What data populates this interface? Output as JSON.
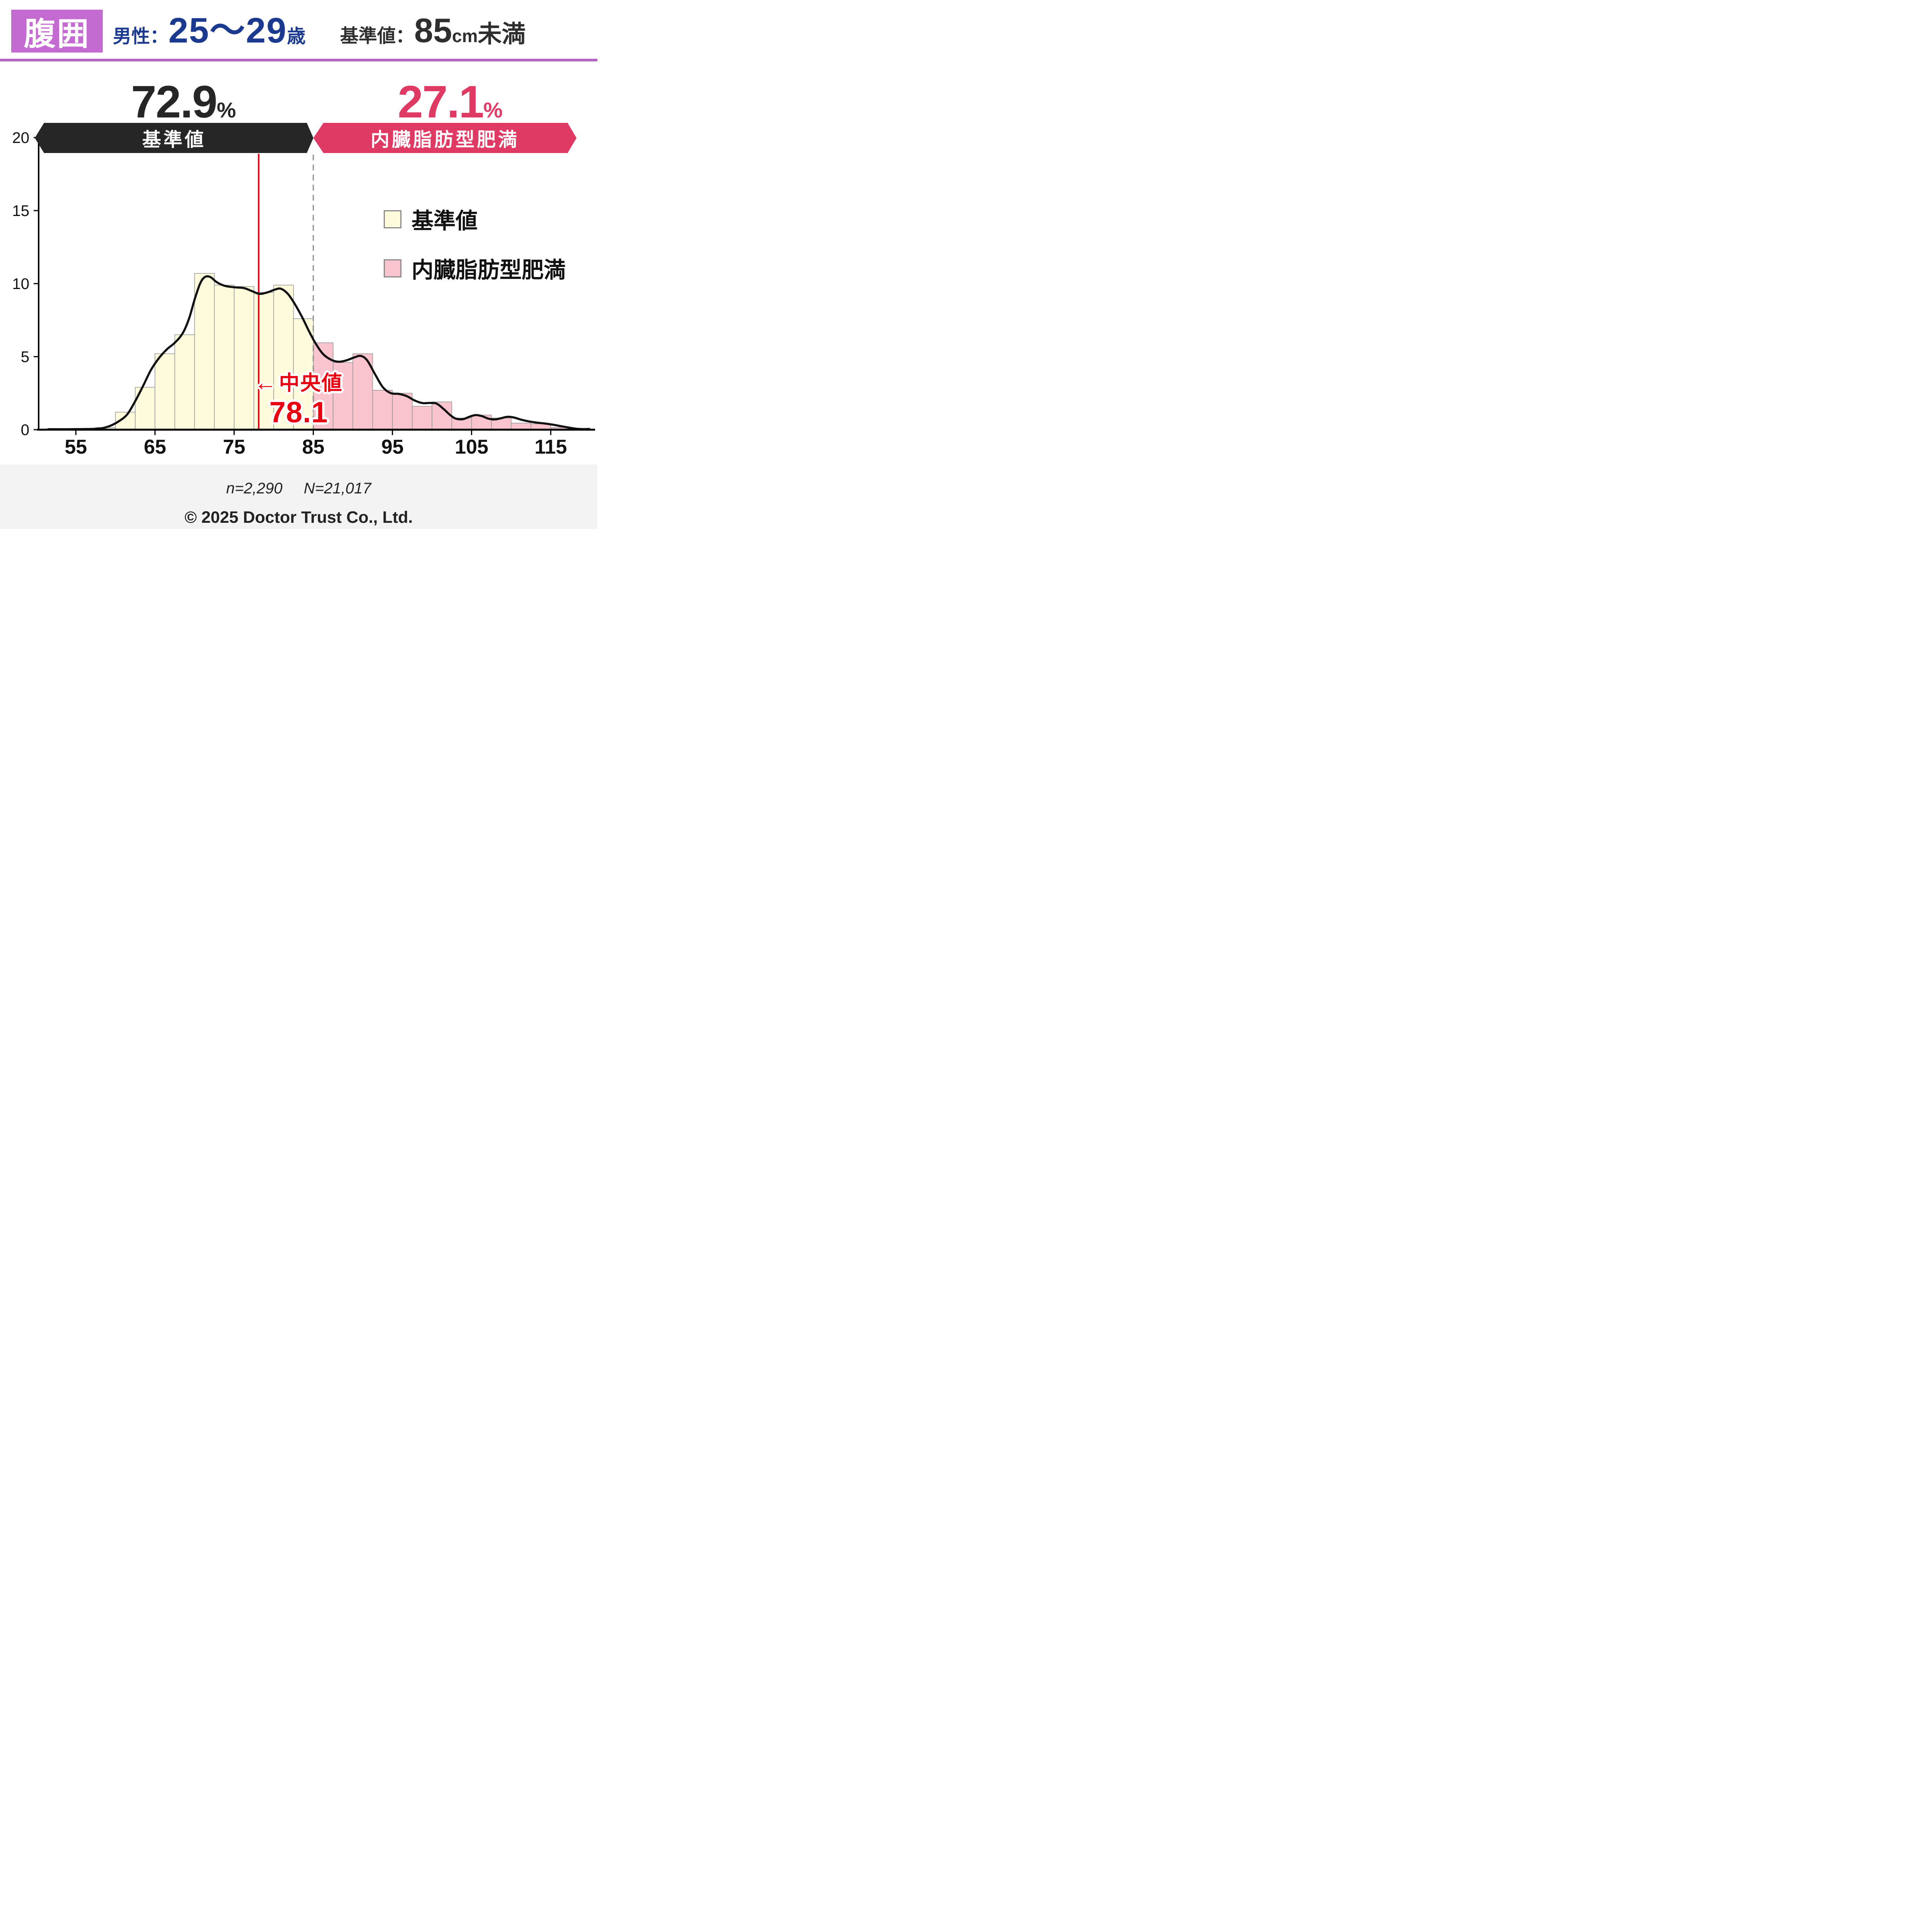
{
  "header": {
    "badge": "腹囲",
    "badge_color": "#c46bd2",
    "divider_color": "#b266c2",
    "subject_prefix": "男性：",
    "subject_value": "25～29",
    "subject_suffix": "歳",
    "subject_color": "#1b3a8f",
    "standard_label": "基準値：",
    "standard_value": "85",
    "standard_unit": "cm",
    "standard_suffix": "未満",
    "standard_color": "#2e2e2e"
  },
  "summary": {
    "left_percent": "72.9",
    "right_percent": "27.1",
    "percent_sign": "%",
    "left_label": "基準値",
    "right_label": "内臓脂肪型肥満",
    "left_color": "#262626",
    "right_color": "#de3a63"
  },
  "legend": {
    "items": [
      {
        "label": "基準値",
        "color": "#fdfbdb"
      },
      {
        "label": "内臓脂肪型肥満",
        "color": "#f9c4cd"
      }
    ]
  },
  "median": {
    "arrow": "←",
    "label": "中央値",
    "value": "78.1",
    "color": "#e60012"
  },
  "footer": {
    "sample_n": "n=2,290",
    "sample_N": "N=21,017",
    "copyright": "© 2025 Doctor Trust Co., Ltd."
  },
  "chart_data": {
    "type": "bar",
    "subtype": "histogram_with_density_curve",
    "title": "",
    "xlabel": "",
    "ylabel": "",
    "xlim": [
      50.3,
      120.6
    ],
    "ylim": [
      0,
      20
    ],
    "x_ticks": [
      55,
      65,
      75,
      85,
      95,
      105,
      115
    ],
    "y_ticks": [
      0,
      5,
      10,
      15,
      20
    ],
    "grid": false,
    "legend_position": "upper right",
    "bin_width": 2.5,
    "threshold_x": 85,
    "median_x": 78.1,
    "bars": [
      {
        "x": 57.5,
        "value": 0.15
      },
      {
        "x": 60,
        "value": 1.2
      },
      {
        "x": 62.5,
        "value": 2.9
      },
      {
        "x": 65,
        "value": 5.2
      },
      {
        "x": 67.5,
        "value": 6.5
      },
      {
        "x": 70,
        "value": 10.7
      },
      {
        "x": 72.5,
        "value": 9.9
      },
      {
        "x": 75,
        "value": 9.8
      },
      {
        "x": 77.5,
        "value": 9.4
      },
      {
        "x": 80,
        "value": 9.9
      },
      {
        "x": 82.5,
        "value": 7.6
      },
      {
        "x": 85,
        "value": 5.95
      },
      {
        "x": 87.5,
        "value": 4.6
      },
      {
        "x": 90,
        "value": 5.2
      },
      {
        "x": 92.5,
        "value": 2.7
      },
      {
        "x": 95,
        "value": 2.5
      },
      {
        "x": 97.5,
        "value": 1.6
      },
      {
        "x": 100,
        "value": 1.9
      },
      {
        "x": 102.5,
        "value": 0.8
      },
      {
        "x": 105,
        "value": 1.0
      },
      {
        "x": 107.5,
        "value": 0.8
      },
      {
        "x": 110,
        "value": 0.45
      },
      {
        "x": 112.5,
        "value": 0.4
      },
      {
        "x": 115,
        "value": 0.15
      },
      {
        "x": 117.5,
        "value": 0.1
      }
    ],
    "below_threshold_color": "#fdfbdb",
    "above_threshold_color": "#f9c4cd",
    "bar_border_color": "#999999",
    "density_color": "#111111",
    "median_line_color": "#e60012",
    "threshold_line_color": "#8a8a8a",
    "axis_color": "#000000",
    "density": [
      [
        51.5,
        0.03
      ],
      [
        54,
        0.03
      ],
      [
        56,
        0.04
      ],
      [
        57.5,
        0.06
      ],
      [
        58.5,
        0.12
      ],
      [
        59.5,
        0.3
      ],
      [
        60.5,
        0.6
      ],
      [
        61.5,
        1.05
      ],
      [
        62.5,
        1.95
      ],
      [
        63.5,
        3.0
      ],
      [
        64.5,
        4.1
      ],
      [
        65.5,
        4.9
      ],
      [
        66.5,
        5.5
      ],
      [
        67.5,
        5.95
      ],
      [
        68.5,
        6.6
      ],
      [
        69.3,
        7.6
      ],
      [
        70,
        8.9
      ],
      [
        70.7,
        10.0
      ],
      [
        71.3,
        10.45
      ],
      [
        72,
        10.45
      ],
      [
        72.8,
        10.1
      ],
      [
        73.8,
        9.85
      ],
      [
        75,
        9.75
      ],
      [
        76.2,
        9.7
      ],
      [
        77.2,
        9.5
      ],
      [
        78.2,
        9.3
      ],
      [
        79.2,
        9.4
      ],
      [
        80.2,
        9.6
      ],
      [
        80.9,
        9.65
      ],
      [
        81.7,
        9.35
      ],
      [
        82.5,
        8.75
      ],
      [
        83.5,
        7.8
      ],
      [
        84.5,
        6.7
      ],
      [
        85.3,
        5.9
      ],
      [
        86.2,
        5.2
      ],
      [
        87.2,
        4.8
      ],
      [
        88.2,
        4.65
      ],
      [
        89.2,
        4.75
      ],
      [
        90.2,
        4.95
      ],
      [
        91,
        5.05
      ],
      [
        91.8,
        4.75
      ],
      [
        92.8,
        3.8
      ],
      [
        93.8,
        2.9
      ],
      [
        94.8,
        2.5
      ],
      [
        95.8,
        2.45
      ],
      [
        96.8,
        2.3
      ],
      [
        97.8,
        2.0
      ],
      [
        98.8,
        1.82
      ],
      [
        99.8,
        1.83
      ],
      [
        100.6,
        1.78
      ],
      [
        101.5,
        1.4
      ],
      [
        102.3,
        1.0
      ],
      [
        103,
        0.76
      ],
      [
        103.9,
        0.72
      ],
      [
        104.8,
        0.9
      ],
      [
        105.5,
        1.0
      ],
      [
        106.3,
        0.93
      ],
      [
        107.1,
        0.76
      ],
      [
        107.9,
        0.7
      ],
      [
        108.7,
        0.78
      ],
      [
        109.5,
        0.88
      ],
      [
        110.3,
        0.84
      ],
      [
        111.3,
        0.68
      ],
      [
        112.3,
        0.56
      ],
      [
        113.3,
        0.48
      ],
      [
        114.3,
        0.42
      ],
      [
        115.3,
        0.34
      ],
      [
        116.3,
        0.24
      ],
      [
        117.3,
        0.14
      ],
      [
        118.3,
        0.06
      ],
      [
        119.2,
        0.03
      ],
      [
        119.8,
        0.05
      ]
    ]
  }
}
